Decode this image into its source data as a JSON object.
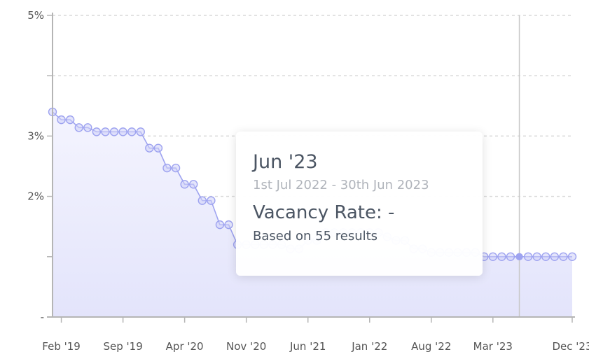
{
  "chart_data": {
    "type": "area",
    "y_ticks": [
      {
        "value": 0,
        "label": "-"
      },
      {
        "value": 1,
        "label": ""
      },
      {
        "value": 2,
        "label": "2%"
      },
      {
        "value": 3,
        "label": "3%"
      },
      {
        "value": 4,
        "label": ""
      },
      {
        "value": 5,
        "label": "5%"
      }
    ],
    "x_ticks": [
      {
        "index": 1,
        "label": "Feb '19"
      },
      {
        "index": 8,
        "label": "Sep '19"
      },
      {
        "index": 15,
        "label": "Apr '20"
      },
      {
        "index": 22,
        "label": "Nov '20"
      },
      {
        "index": 29,
        "label": "Jun '21"
      },
      {
        "index": 36,
        "label": "Jan '22"
      },
      {
        "index": 43,
        "label": "Aug '22"
      },
      {
        "index": 50,
        "label": "Mar '23"
      },
      {
        "index": 59,
        "label": "Dec '23"
      }
    ],
    "ylim": [
      0,
      5
    ],
    "x_start": "Jan '19",
    "x_end": "Dec '23",
    "grid": true,
    "series": [
      {
        "values": [
          3.4,
          3.27,
          3.27,
          3.14,
          3.14,
          3.07,
          3.07,
          3.07,
          3.07,
          3.07,
          3.07,
          2.8,
          2.8,
          2.47,
          2.47,
          2.2,
          2.2,
          1.93,
          1.93,
          1.53,
          1.53,
          1.2,
          1.2,
          1.2,
          1.2,
          1.2,
          1.2,
          1.13,
          1.13,
          1.27,
          1.27,
          1.4,
          1.4,
          1.4,
          1.4,
          1.4,
          1.4,
          1.4,
          1.33,
          1.27,
          1.27,
          1.13,
          1.13,
          1.07,
          1.07,
          1.07,
          1.07,
          1.07,
          1.07,
          1.0,
          1.0,
          1.0,
          1.0,
          1.0,
          1.0,
          1.0,
          1.0,
          1.0,
          1.0,
          1.0
        ],
        "color": "#9ea3f0"
      }
    ],
    "highlight_index": 53
  },
  "tooltip": {
    "title": "Jun '23",
    "period": "1st Jul 2022 - 30th Jun 2023",
    "metric": "Vacancy Rate: -",
    "note": "Based on 55 results"
  }
}
